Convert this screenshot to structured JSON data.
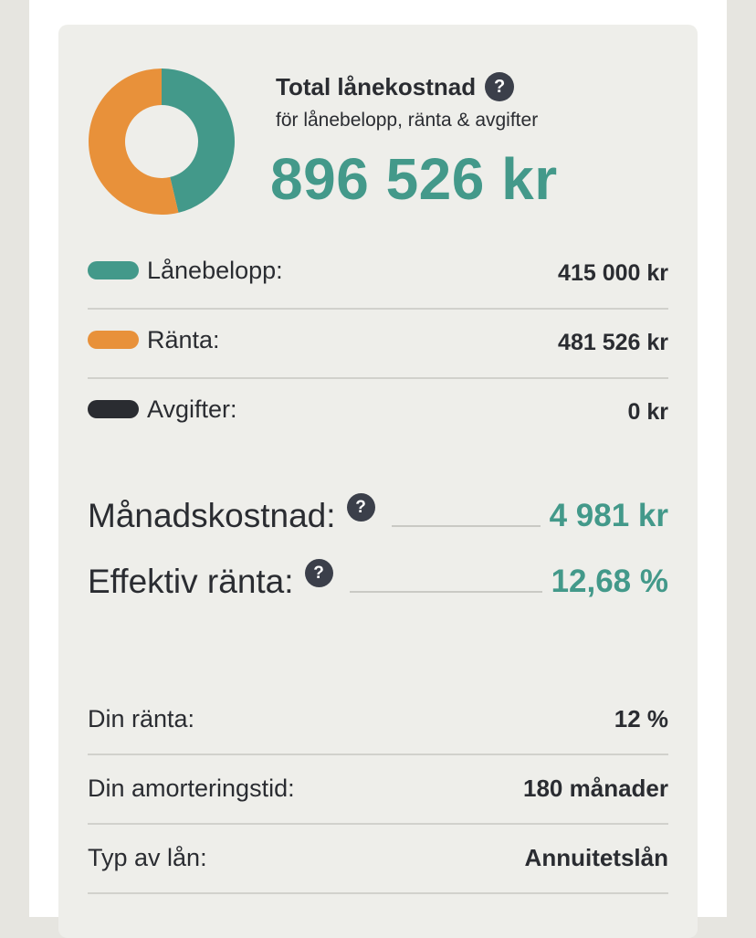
{
  "summary": {
    "title": "Total lånekostnad",
    "help_icon": "?",
    "subtitle": "för lånebelopp, ränta & avgifter",
    "total": "896 526 kr"
  },
  "chart_data": {
    "type": "pie",
    "categories": [
      "Lånebelopp",
      "Ränta",
      "Avgifter"
    ],
    "values": [
      415000,
      481526,
      0
    ],
    "colors": [
      "#43998a",
      "#e8913a",
      "#2a2c31"
    ]
  },
  "breakdown": [
    {
      "label": "Lånebelopp:",
      "value": "415 000 kr",
      "color": "#43998a"
    },
    {
      "label": "Ränta:",
      "value": "481 526 kr",
      "color": "#e8913a"
    },
    {
      "label": "Avgifter:",
      "value": "0 kr",
      "color": "#2a2c31"
    }
  ],
  "monthly": {
    "label": "Månadskostnad:",
    "help_icon": "?",
    "value": "4 981 kr"
  },
  "effective": {
    "label": "Effektiv ränta:",
    "help_icon": "?",
    "value": "12,68 %"
  },
  "details": [
    {
      "label": "Din ränta:",
      "value": "12 %"
    },
    {
      "label": "Din amorteringstid:",
      "value": "180 månader"
    },
    {
      "label": "Typ av lån:",
      "value": "Annuitetslån"
    }
  ]
}
